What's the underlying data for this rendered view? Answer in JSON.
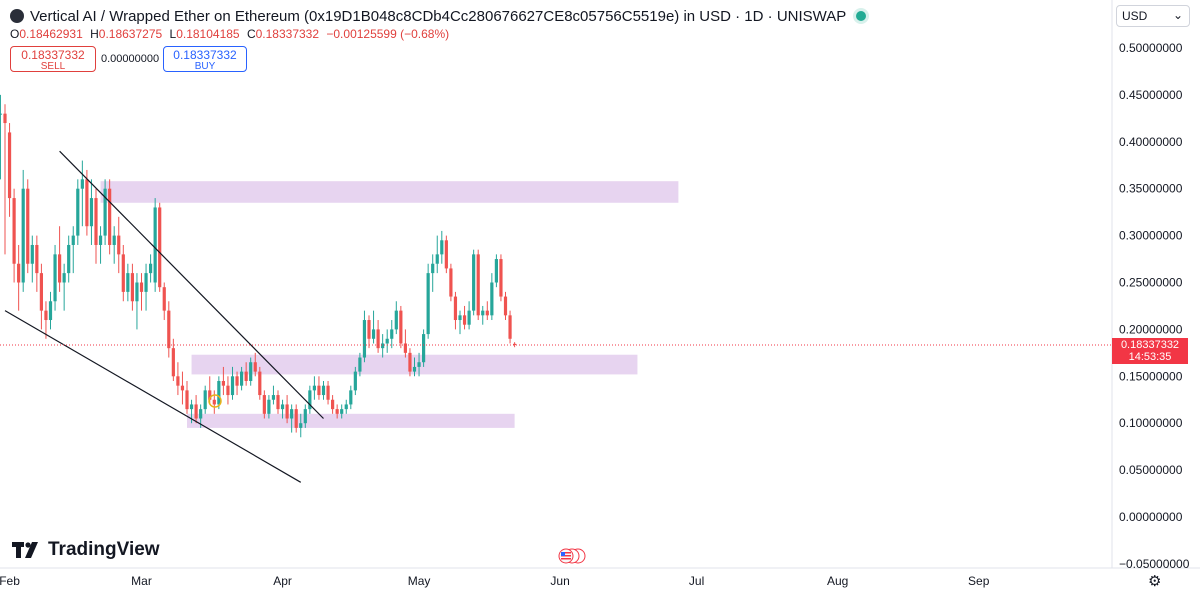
{
  "header": {
    "title": "Vertical AI / Wrapped Ether on Ethereum (0x19D1B048c8CDb4Cc280676627CE8c05756C5519e) in USD · 1D · UNISWAP"
  },
  "ohlc": {
    "o_label": "O",
    "o": "0.18462931",
    "h_label": "H",
    "h": "0.18637275",
    "l_label": "L",
    "l": "0.18104185",
    "c_label": "C",
    "c": "0.18337332",
    "change": "−0.00125599 (−0.68%)"
  },
  "trade": {
    "sell_price": "0.18337332",
    "sell_label": "SELL",
    "spread": "0.00000000",
    "buy_price": "0.18337332",
    "buy_label": "BUY"
  },
  "currency": {
    "value": "USD"
  },
  "price_tag": {
    "price": "0.18337332",
    "countdown": "14:53:35"
  },
  "brand": {
    "name": "TradingView"
  },
  "colors": {
    "up": "#26a69a",
    "down": "#ef5350",
    "zone": "#e1c9ec",
    "last_price": "#f23645"
  },
  "chart_data": {
    "type": "candlestick",
    "title": "Vertical AI / Wrapped Ether on Ethereum · 1D",
    "ylim": [
      -0.05,
      0.52
    ],
    "y_ticks": [
      "0.50000000",
      "0.45000000",
      "0.40000000",
      "0.35000000",
      "0.30000000",
      "0.25000000",
      "0.20000000",
      "0.15000000",
      "0.10000000",
      "0.05000000",
      "0.00000000",
      "−0.05000000"
    ],
    "x_ticks": [
      "Feb",
      "Mar",
      "Apr",
      "May",
      "Jun",
      "Jul",
      "Aug",
      "Sep"
    ],
    "last_price": 0.18337332,
    "grid": false,
    "zones": [
      {
        "x0": "2024-02-21",
        "x1": "2024-06-27",
        "y0": 0.335,
        "y1": 0.358
      },
      {
        "x0": "2024-03-12",
        "x1": "2024-06-18",
        "y0": 0.152,
        "y1": 0.173
      },
      {
        "x0": "2024-03-11",
        "x1": "2024-05-22",
        "y0": 0.095,
        "y1": 0.11
      }
    ],
    "trendlines": [
      {
        "x0": "2024-02-12",
        "y0": 0.39,
        "x1": "2024-04-10",
        "y1": 0.105
      },
      {
        "x0": "2024-01-31",
        "y0": 0.22,
        "x1": "2024-04-05",
        "y1": 0.037
      }
    ],
    "candles": [
      {
        "d": "2024-01-30",
        "o": 0.43,
        "h": 0.45,
        "l": 0.36,
        "c": 0.43
      },
      {
        "d": "2024-01-31",
        "o": 0.43,
        "h": 0.44,
        "l": 0.28,
        "c": 0.42
      },
      {
        "d": "2024-02-01",
        "o": 0.41,
        "h": 0.42,
        "l": 0.32,
        "c": 0.34
      },
      {
        "d": "2024-02-02",
        "o": 0.34,
        "h": 0.35,
        "l": 0.25,
        "c": 0.27
      },
      {
        "d": "2024-02-03",
        "o": 0.27,
        "h": 0.29,
        "l": 0.22,
        "c": 0.25
      },
      {
        "d": "2024-02-04",
        "o": 0.25,
        "h": 0.37,
        "l": 0.24,
        "c": 0.35
      },
      {
        "d": "2024-02-05",
        "o": 0.35,
        "h": 0.36,
        "l": 0.26,
        "c": 0.27
      },
      {
        "d": "2024-02-06",
        "o": 0.27,
        "h": 0.3,
        "l": 0.25,
        "c": 0.29
      },
      {
        "d": "2024-02-07",
        "o": 0.29,
        "h": 0.3,
        "l": 0.24,
        "c": 0.26
      },
      {
        "d": "2024-02-08",
        "o": 0.26,
        "h": 0.27,
        "l": 0.2,
        "c": 0.22
      },
      {
        "d": "2024-02-09",
        "o": 0.22,
        "h": 0.23,
        "l": 0.19,
        "c": 0.21
      },
      {
        "d": "2024-02-10",
        "o": 0.21,
        "h": 0.24,
        "l": 0.2,
        "c": 0.23
      },
      {
        "d": "2024-02-11",
        "o": 0.23,
        "h": 0.29,
        "l": 0.22,
        "c": 0.28
      },
      {
        "d": "2024-02-12",
        "o": 0.28,
        "h": 0.31,
        "l": 0.24,
        "c": 0.25
      },
      {
        "d": "2024-02-13",
        "o": 0.25,
        "h": 0.27,
        "l": 0.22,
        "c": 0.26
      },
      {
        "d": "2024-02-14",
        "o": 0.26,
        "h": 0.3,
        "l": 0.25,
        "c": 0.29
      },
      {
        "d": "2024-02-15",
        "o": 0.29,
        "h": 0.31,
        "l": 0.26,
        "c": 0.3
      },
      {
        "d": "2024-02-16",
        "o": 0.3,
        "h": 0.36,
        "l": 0.29,
        "c": 0.35
      },
      {
        "d": "2024-02-17",
        "o": 0.35,
        "h": 0.38,
        "l": 0.31,
        "c": 0.36
      },
      {
        "d": "2024-02-18",
        "o": 0.36,
        "h": 0.37,
        "l": 0.3,
        "c": 0.31
      },
      {
        "d": "2024-02-19",
        "o": 0.31,
        "h": 0.36,
        "l": 0.29,
        "c": 0.34
      },
      {
        "d": "2024-02-20",
        "o": 0.34,
        "h": 0.35,
        "l": 0.27,
        "c": 0.29
      },
      {
        "d": "2024-02-21",
        "o": 0.29,
        "h": 0.31,
        "l": 0.27,
        "c": 0.3
      },
      {
        "d": "2024-02-22",
        "o": 0.3,
        "h": 0.36,
        "l": 0.29,
        "c": 0.35
      },
      {
        "d": "2024-02-23",
        "o": 0.35,
        "h": 0.36,
        "l": 0.28,
        "c": 0.29
      },
      {
        "d": "2024-02-24",
        "o": 0.29,
        "h": 0.31,
        "l": 0.27,
        "c": 0.3
      },
      {
        "d": "2024-02-25",
        "o": 0.3,
        "h": 0.32,
        "l": 0.26,
        "c": 0.28
      },
      {
        "d": "2024-02-26",
        "o": 0.28,
        "h": 0.29,
        "l": 0.23,
        "c": 0.24
      },
      {
        "d": "2024-02-27",
        "o": 0.24,
        "h": 0.27,
        "l": 0.23,
        "c": 0.26
      },
      {
        "d": "2024-02-28",
        "o": 0.26,
        "h": 0.27,
        "l": 0.22,
        "c": 0.23
      },
      {
        "d": "2024-02-29",
        "o": 0.23,
        "h": 0.26,
        "l": 0.2,
        "c": 0.25
      },
      {
        "d": "2024-03-01",
        "o": 0.25,
        "h": 0.26,
        "l": 0.22,
        "c": 0.24
      },
      {
        "d": "2024-03-02",
        "o": 0.24,
        "h": 0.27,
        "l": 0.22,
        "c": 0.26
      },
      {
        "d": "2024-03-03",
        "o": 0.26,
        "h": 0.28,
        "l": 0.25,
        "c": 0.27
      },
      {
        "d": "2024-03-04",
        "o": 0.25,
        "h": 0.34,
        "l": 0.24,
        "c": 0.33
      },
      {
        "d": "2024-03-05",
        "o": 0.33,
        "h": 0.335,
        "l": 0.24,
        "c": 0.245
      },
      {
        "d": "2024-03-06",
        "o": 0.245,
        "h": 0.25,
        "l": 0.21,
        "c": 0.22
      },
      {
        "d": "2024-03-07",
        "o": 0.22,
        "h": 0.23,
        "l": 0.17,
        "c": 0.18
      },
      {
        "d": "2024-03-08",
        "o": 0.18,
        "h": 0.19,
        "l": 0.145,
        "c": 0.15
      },
      {
        "d": "2024-03-09",
        "o": 0.15,
        "h": 0.165,
        "l": 0.13,
        "c": 0.14
      },
      {
        "d": "2024-03-10",
        "o": 0.14,
        "h": 0.155,
        "l": 0.12,
        "c": 0.135
      },
      {
        "d": "2024-03-11",
        "o": 0.135,
        "h": 0.145,
        "l": 0.11,
        "c": 0.115
      },
      {
        "d": "2024-03-12",
        "o": 0.115,
        "h": 0.125,
        "l": 0.1,
        "c": 0.12
      },
      {
        "d": "2024-03-13",
        "o": 0.12,
        "h": 0.13,
        "l": 0.1,
        "c": 0.105
      },
      {
        "d": "2024-03-14",
        "o": 0.105,
        "h": 0.12,
        "l": 0.095,
        "c": 0.115
      },
      {
        "d": "2024-03-15",
        "o": 0.115,
        "h": 0.14,
        "l": 0.11,
        "c": 0.135
      },
      {
        "d": "2024-03-16",
        "o": 0.135,
        "h": 0.15,
        "l": 0.12,
        "c": 0.125
      },
      {
        "d": "2024-03-17",
        "o": 0.125,
        "h": 0.135,
        "l": 0.11,
        "c": 0.12
      },
      {
        "d": "2024-03-18",
        "o": 0.12,
        "h": 0.15,
        "l": 0.115,
        "c": 0.145
      },
      {
        "d": "2024-03-19",
        "o": 0.145,
        "h": 0.16,
        "l": 0.13,
        "c": 0.14
      },
      {
        "d": "2024-03-20",
        "o": 0.14,
        "h": 0.15,
        "l": 0.12,
        "c": 0.13
      },
      {
        "d": "2024-03-21",
        "o": 0.13,
        "h": 0.16,
        "l": 0.125,
        "c": 0.15
      },
      {
        "d": "2024-03-22",
        "o": 0.15,
        "h": 0.155,
        "l": 0.13,
        "c": 0.14
      },
      {
        "d": "2024-03-23",
        "o": 0.14,
        "h": 0.16,
        "l": 0.135,
        "c": 0.155
      },
      {
        "d": "2024-03-24",
        "o": 0.155,
        "h": 0.165,
        "l": 0.14,
        "c": 0.145
      },
      {
        "d": "2024-03-25",
        "o": 0.145,
        "h": 0.17,
        "l": 0.14,
        "c": 0.165
      },
      {
        "d": "2024-03-26",
        "o": 0.165,
        "h": 0.175,
        "l": 0.15,
        "c": 0.155
      },
      {
        "d": "2024-03-27",
        "o": 0.155,
        "h": 0.16,
        "l": 0.125,
        "c": 0.13
      },
      {
        "d": "2024-03-28",
        "o": 0.13,
        "h": 0.135,
        "l": 0.105,
        "c": 0.11
      },
      {
        "d": "2024-03-29",
        "o": 0.11,
        "h": 0.13,
        "l": 0.105,
        "c": 0.125
      },
      {
        "d": "2024-03-30",
        "o": 0.125,
        "h": 0.14,
        "l": 0.12,
        "c": 0.13
      },
      {
        "d": "2024-03-31",
        "o": 0.13,
        "h": 0.135,
        "l": 0.11,
        "c": 0.115
      },
      {
        "d": "2024-04-01",
        "o": 0.115,
        "h": 0.125,
        "l": 0.105,
        "c": 0.12
      },
      {
        "d": "2024-04-02",
        "o": 0.12,
        "h": 0.13,
        "l": 0.1,
        "c": 0.105
      },
      {
        "d": "2024-04-03",
        "o": 0.105,
        "h": 0.12,
        "l": 0.09,
        "c": 0.115
      },
      {
        "d": "2024-04-04",
        "o": 0.115,
        "h": 0.12,
        "l": 0.09,
        "c": 0.095
      },
      {
        "d": "2024-04-05",
        "o": 0.095,
        "h": 0.11,
        "l": 0.085,
        "c": 0.1
      },
      {
        "d": "2024-04-06",
        "o": 0.1,
        "h": 0.12,
        "l": 0.095,
        "c": 0.115
      },
      {
        "d": "2024-04-07",
        "o": 0.115,
        "h": 0.14,
        "l": 0.11,
        "c": 0.135
      },
      {
        "d": "2024-04-08",
        "o": 0.135,
        "h": 0.15,
        "l": 0.125,
        "c": 0.14
      },
      {
        "d": "2024-04-09",
        "o": 0.14,
        "h": 0.15,
        "l": 0.125,
        "c": 0.13
      },
      {
        "d": "2024-04-10",
        "o": 0.13,
        "h": 0.145,
        "l": 0.125,
        "c": 0.14
      },
      {
        "d": "2024-04-11",
        "o": 0.14,
        "h": 0.145,
        "l": 0.12,
        "c": 0.125
      },
      {
        "d": "2024-04-12",
        "o": 0.125,
        "h": 0.13,
        "l": 0.11,
        "c": 0.115
      },
      {
        "d": "2024-04-13",
        "o": 0.115,
        "h": 0.12,
        "l": 0.105,
        "c": 0.11
      },
      {
        "d": "2024-04-14",
        "o": 0.11,
        "h": 0.12,
        "l": 0.105,
        "c": 0.115
      },
      {
        "d": "2024-04-15",
        "o": 0.115,
        "h": 0.125,
        "l": 0.11,
        "c": 0.12
      },
      {
        "d": "2024-04-16",
        "o": 0.12,
        "h": 0.14,
        "l": 0.115,
        "c": 0.135
      },
      {
        "d": "2024-04-17",
        "o": 0.135,
        "h": 0.16,
        "l": 0.13,
        "c": 0.155
      },
      {
        "d": "2024-04-18",
        "o": 0.155,
        "h": 0.175,
        "l": 0.15,
        "c": 0.17
      },
      {
        "d": "2024-04-19",
        "o": 0.17,
        "h": 0.22,
        "l": 0.165,
        "c": 0.21
      },
      {
        "d": "2024-04-20",
        "o": 0.21,
        "h": 0.215,
        "l": 0.18,
        "c": 0.19
      },
      {
        "d": "2024-04-21",
        "o": 0.19,
        "h": 0.22,
        "l": 0.185,
        "c": 0.2
      },
      {
        "d": "2024-04-22",
        "o": 0.2,
        "h": 0.21,
        "l": 0.175,
        "c": 0.18
      },
      {
        "d": "2024-04-23",
        "o": 0.18,
        "h": 0.195,
        "l": 0.17,
        "c": 0.185
      },
      {
        "d": "2024-04-24",
        "o": 0.185,
        "h": 0.2,
        "l": 0.175,
        "c": 0.19
      },
      {
        "d": "2024-04-25",
        "o": 0.19,
        "h": 0.21,
        "l": 0.18,
        "c": 0.2
      },
      {
        "d": "2024-04-26",
        "o": 0.2,
        "h": 0.23,
        "l": 0.195,
        "c": 0.22
      },
      {
        "d": "2024-04-27",
        "o": 0.22,
        "h": 0.225,
        "l": 0.18,
        "c": 0.185
      },
      {
        "d": "2024-04-28",
        "o": 0.185,
        "h": 0.2,
        "l": 0.17,
        "c": 0.175
      },
      {
        "d": "2024-04-29",
        "o": 0.175,
        "h": 0.18,
        "l": 0.15,
        "c": 0.155
      },
      {
        "d": "2024-04-30",
        "o": 0.155,
        "h": 0.17,
        "l": 0.15,
        "c": 0.16
      },
      {
        "d": "2024-05-01",
        "o": 0.16,
        "h": 0.175,
        "l": 0.15,
        "c": 0.165
      },
      {
        "d": "2024-05-02",
        "o": 0.165,
        "h": 0.2,
        "l": 0.16,
        "c": 0.195
      },
      {
        "d": "2024-05-03",
        "o": 0.195,
        "h": 0.27,
        "l": 0.19,
        "c": 0.26
      },
      {
        "d": "2024-05-04",
        "o": 0.26,
        "h": 0.28,
        "l": 0.24,
        "c": 0.27
      },
      {
        "d": "2024-05-05",
        "o": 0.27,
        "h": 0.3,
        "l": 0.26,
        "c": 0.28
      },
      {
        "d": "2024-05-06",
        "o": 0.28,
        "h": 0.305,
        "l": 0.27,
        "c": 0.295
      },
      {
        "d": "2024-05-07",
        "o": 0.295,
        "h": 0.3,
        "l": 0.26,
        "c": 0.265
      },
      {
        "d": "2024-05-08",
        "o": 0.265,
        "h": 0.27,
        "l": 0.23,
        "c": 0.235
      },
      {
        "d": "2024-05-09",
        "o": 0.235,
        "h": 0.24,
        "l": 0.2,
        "c": 0.21
      },
      {
        "d": "2024-05-10",
        "o": 0.21,
        "h": 0.22,
        "l": 0.195,
        "c": 0.215
      },
      {
        "d": "2024-05-11",
        "o": 0.215,
        "h": 0.225,
        "l": 0.2,
        "c": 0.205
      },
      {
        "d": "2024-05-12",
        "o": 0.205,
        "h": 0.23,
        "l": 0.2,
        "c": 0.22
      },
      {
        "d": "2024-05-13",
        "o": 0.22,
        "h": 0.285,
        "l": 0.215,
        "c": 0.28
      },
      {
        "d": "2024-05-14",
        "o": 0.28,
        "h": 0.285,
        "l": 0.21,
        "c": 0.215
      },
      {
        "d": "2024-05-15",
        "o": 0.215,
        "h": 0.225,
        "l": 0.205,
        "c": 0.22
      },
      {
        "d": "2024-05-16",
        "o": 0.22,
        "h": 0.23,
        "l": 0.21,
        "c": 0.215
      },
      {
        "d": "2024-05-17",
        "o": 0.215,
        "h": 0.26,
        "l": 0.21,
        "c": 0.25
      },
      {
        "d": "2024-05-18",
        "o": 0.25,
        "h": 0.28,
        "l": 0.245,
        "c": 0.275
      },
      {
        "d": "2024-05-19",
        "o": 0.275,
        "h": 0.28,
        "l": 0.23,
        "c": 0.235
      },
      {
        "d": "2024-05-20",
        "o": 0.235,
        "h": 0.24,
        "l": 0.21,
        "c": 0.215
      },
      {
        "d": "2024-05-21",
        "o": 0.215,
        "h": 0.22,
        "l": 0.185,
        "c": 0.19
      },
      {
        "d": "2024-05-22",
        "o": 0.18463,
        "h": 0.18637,
        "l": 0.18104,
        "c": 0.18337
      }
    ]
  }
}
